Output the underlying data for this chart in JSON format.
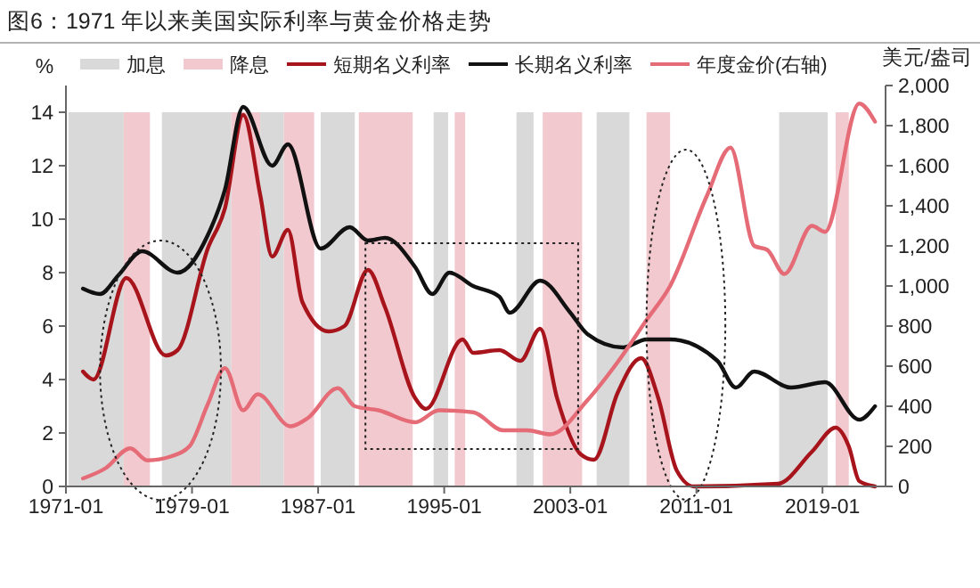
{
  "chart_data": {
    "type": "line",
    "title": "图6：1971 年以来美国实际利率与黄金价格走势",
    "ylabel": "%",
    "y2label": "美元/盎司",
    "xlim": [
      "1971-01",
      "2023-01"
    ],
    "xticks": [
      {
        "value": "1971-01",
        "label": "1971-01"
      },
      {
        "value": "1979-01",
        "label": "1979-01"
      },
      {
        "value": "1987-01",
        "label": "1987-01"
      },
      {
        "value": "1995-01",
        "label": "1995-01"
      },
      {
        "value": "2003-01",
        "label": "2003-01"
      },
      {
        "value": "2011-01",
        "label": "2011-01"
      },
      {
        "value": "2019-01",
        "label": "2019-01"
      }
    ],
    "ylim": [
      0,
      15
    ],
    "yticks": [
      0,
      2,
      4,
      6,
      8,
      10,
      12,
      14
    ],
    "y2lim": [
      0,
      2000
    ],
    "y2ticks": [
      0,
      {
        "value": 200,
        "label": "200"
      },
      {
        "value": 400,
        "label": "400"
      },
      {
        "value": 600,
        "label": "600"
      },
      {
        "value": 800,
        "label": "800"
      },
      {
        "value": 1000,
        "label": "1,000"
      },
      {
        "value": 1200,
        "label": "1,200"
      },
      {
        "value": 1400,
        "label": "1,400"
      },
      {
        "value": 1600,
        "label": "1,600"
      },
      {
        "value": 1800,
        "label": "1,800"
      },
      {
        "value": 2000,
        "label": "2,000"
      }
    ],
    "bands": [
      {
        "axis": "x",
        "from": "1971-03",
        "to": "1974-09",
        "label": "加息",
        "color": "#d9d9d9"
      },
      {
        "axis": "x",
        "from": "1974-09",
        "to": "1976-05",
        "label": "降息",
        "color": "#f2c9cf"
      },
      {
        "axis": "x",
        "from": "1977-02",
        "to": "1981-07",
        "color": "#d9d9d9"
      },
      {
        "axis": "x",
        "from": "1981-07",
        "to": "1983-05",
        "color": "#f2c9cf"
      },
      {
        "axis": "x",
        "from": "1983-05",
        "to": "1984-11",
        "color": "#d9d9d9"
      },
      {
        "axis": "x",
        "from": "1984-11",
        "to": "1986-10",
        "color": "#f2c9cf"
      },
      {
        "axis": "x",
        "from": "1987-03",
        "to": "1989-05",
        "color": "#d9d9d9"
      },
      {
        "axis": "x",
        "from": "1989-08",
        "to": "1993-01",
        "color": "#f2c9cf"
      },
      {
        "axis": "x",
        "from": "1994-05",
        "to": "1995-04",
        "color": "#d9d9d9"
      },
      {
        "axis": "x",
        "from": "1995-09",
        "to": "1996-05",
        "color": "#f2c9cf"
      },
      {
        "axis": "x",
        "from": "1999-08",
        "to": "2000-09",
        "color": "#d9d9d9"
      },
      {
        "axis": "x",
        "from": "2001-04",
        "to": "2003-10",
        "color": "#f2c9cf"
      },
      {
        "axis": "x",
        "from": "2004-09",
        "to": "2006-10",
        "color": "#d9d9d9"
      },
      {
        "axis": "x",
        "from": "2007-11",
        "to": "2009-05",
        "color": "#f2c9cf"
      },
      {
        "axis": "x",
        "from": "2016-04",
        "to": "2019-05",
        "color": "#d9d9d9"
      },
      {
        "axis": "x",
        "from": "2019-11",
        "to": "2020-09",
        "color": "#f2c9cf"
      }
    ],
    "series": [
      {
        "name": "短期名义利率",
        "color": "#a8141c",
        "x": [
          "1972-02",
          "1972-10",
          "1974-11",
          "1977-05",
          "1978-02",
          "1980-01",
          "1981-02",
          "1982-04",
          "1983-05",
          "1984-02",
          "1985-02",
          "1986-01",
          "1987-09",
          "1988-09",
          "1990-03",
          "1991-04",
          "1993-03",
          "1993-11",
          "1996-03",
          "1996-11",
          "1998-07",
          "1999-11",
          "2001-02",
          "2002-03",
          "2003-09",
          "2004-07",
          "2006-01",
          "2007-07",
          "2008-08",
          "2009-10",
          "2010-11",
          "2016-03",
          "2018-05",
          "2019-11",
          "2020-09",
          "2021-05",
          "2022-05"
        ],
        "values": [
          4.3,
          4.0,
          7.8,
          4.9,
          5.1,
          8.9,
          10.4,
          13.9,
          10.9,
          8.6,
          9.6,
          6.9,
          5.8,
          6.0,
          8.1,
          6.7,
          3.3,
          2.9,
          5.5,
          5.0,
          5.1,
          4.7,
          5.9,
          3.3,
          1.2,
          1.0,
          3.5,
          4.8,
          3.3,
          0.6,
          0.0,
          0.1,
          1.3,
          2.2,
          1.5,
          0.2,
          0.0
        ]
      },
      {
        "name": "长期名义利率",
        "color": "#111111",
        "x": [
          "1972-02",
          "1973-03",
          "1974-05",
          "1975-11",
          "1978-02",
          "1980-01",
          "1981-02",
          "1982-04",
          "1984-02",
          "1985-02",
          "1987-03",
          "1989-01",
          "1990-03",
          "1991-04",
          "1993-03",
          "1994-04",
          "1995-05",
          "1996-11",
          "1998-07",
          "1999-03",
          "2001-02",
          "2003-01",
          "2004-02",
          "2006-05",
          "2007-11",
          "2009-05",
          "2012-05",
          "2013-07",
          "2014-09",
          "2017-01",
          "2019-03",
          "2021-05",
          "2022-05"
        ],
        "values": [
          7.4,
          7.2,
          7.9,
          8.8,
          8.0,
          9.4,
          11.1,
          14.2,
          12.0,
          12.8,
          8.9,
          9.7,
          9.2,
          9.3,
          8.2,
          7.2,
          8.0,
          7.5,
          7.1,
          6.5,
          7.7,
          6.5,
          5.7,
          5.2,
          5.5,
          5.5,
          4.7,
          3.7,
          4.3,
          3.7,
          3.9,
          2.5,
          3.0
        ]
      },
      {
        "name": "年度金价(右轴)",
        "color": "#e56b77",
        "axis": "y2",
        "x": [
          "1972-02",
          "1973-07",
          "1975-02",
          "1976-03",
          "1977-09",
          "1978-11",
          "1980-01",
          "1981-02",
          "1982-04",
          "1983-03",
          "1985-04",
          "1986-05",
          "1988-04",
          "1989-05",
          "1990-11",
          "1993-03",
          "1994-09",
          "1996-11",
          "1998-10",
          "2000-04",
          "2001-10",
          "2004-02",
          "2006-01",
          "2007-11",
          "2009-05",
          "2011-09",
          "2013-03",
          "2014-09",
          "2015-07",
          "2016-08",
          "2018-05",
          "2019-03",
          "2021-05",
          "2022-05"
        ],
        "values": [
          40,
          90,
          190,
          130,
          150,
          200,
          410,
          590,
          380,
          460,
          300,
          340,
          490,
          400,
          380,
          320,
          380,
          370,
          280,
          280,
          260,
          430,
          620,
          830,
          1000,
          1450,
          1690,
          1200,
          1180,
          1060,
          1300,
          1270,
          1910,
          1820
        ]
      }
    ],
    "legend": "top",
    "grid": false,
    "marker": "none",
    "line_style": "solid"
  }
}
